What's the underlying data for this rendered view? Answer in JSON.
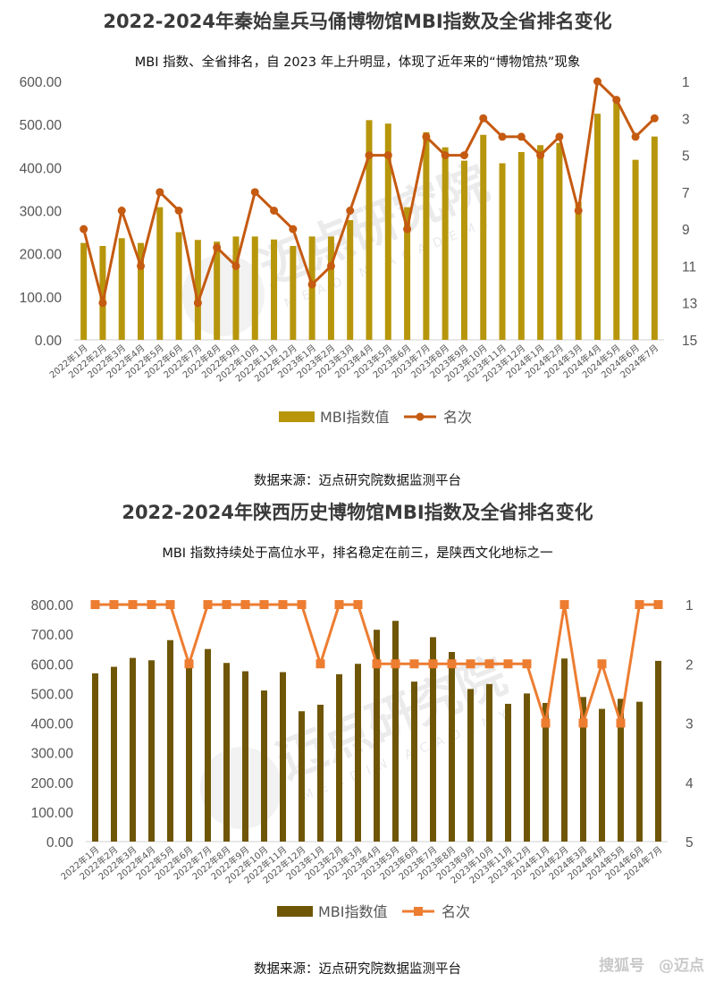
{
  "charts": [
    {
      "title": "2022-2024年秦始皇兵马俑博物馆MBI指数及全省排名变化",
      "subtitle": "MBI 指数、全省排名，自 2023 年上升明显，体现了近年来的“博物馆热”现象",
      "source": "数据来源：迈点研究院数据监测平台",
      "watermark": "迈点研究院",
      "watermark_sub": "MEADIN ACADEMY"
    },
    {
      "title": "2022-2024年陕西历史博物馆MBI指数及全省排名变化",
      "subtitle": "MBI 指数持续处于高位水平，排名稳定在前三，是陕西文化地标之一",
      "source": "数据来源：迈点研究院数据监测平台",
      "watermark": "迈点研究院",
      "watermark_sub": "MEADIN ACADEMY"
    }
  ],
  "brand": {
    "left": "搜狐号",
    "right": "@迈点"
  },
  "chart_data": [
    {
      "type": "bar+line",
      "title": "2022-2024年秦始皇兵马俑博物馆MBI指数及全省排名变化",
      "categories": [
        "2022年1月",
        "2022年2月",
        "2022年3月",
        "2022年4月",
        "2022年5月",
        "2022年6月",
        "2022年7月",
        "2022年8月",
        "2022年9月",
        "2022年10月",
        "2022年11月",
        "2022年12月",
        "2023年1月",
        "2023年2月",
        "2023年3月",
        "2023年4月",
        "2023年5月",
        "2023年6月",
        "2023年7月",
        "2023年8月",
        "2023年9月",
        "2023年10月",
        "2023年11月",
        "2023年12月",
        "2024年1月",
        "2024年2月",
        "2024年3月",
        "2024年4月",
        "2024年5月",
        "2024年6月",
        "2024年7月"
      ],
      "series": [
        {
          "name": "MBI指数值",
          "kind": "bar",
          "axis": "left",
          "color": "#b7960c",
          "values": [
            225,
            218,
            236,
            225,
            308,
            250,
            232,
            228,
            240,
            240,
            233,
            218,
            240,
            240,
            278,
            510,
            502,
            308,
            482,
            447,
            416,
            476,
            410,
            436,
            452,
            457,
            320,
            525,
            550,
            418,
            472
          ]
        },
        {
          "name": "名次",
          "kind": "line",
          "axis": "right",
          "color": "#c55a11",
          "values": [
            9,
            13,
            8,
            11,
            7,
            8,
            13,
            10,
            11,
            7,
            8,
            9,
            12,
            11,
            8,
            5,
            5,
            9,
            4,
            5,
            5,
            3,
            4,
            4,
            5,
            4,
            8,
            1,
            2,
            4,
            3
          ]
        }
      ],
      "y_left": {
        "min": 0,
        "max": 600,
        "step": 100,
        "ticks": [
          "0.00",
          "100.00",
          "200.00",
          "300.00",
          "400.00",
          "500.00",
          "600.00"
        ]
      },
      "y_right": {
        "min": 1,
        "max": 15,
        "reversed": true,
        "ticks": [
          "1",
          "3",
          "5",
          "7",
          "9",
          "11",
          "13",
          "15"
        ]
      },
      "legend": [
        "MBI指数值",
        "名次"
      ]
    },
    {
      "type": "bar+line",
      "title": "2022-2024年陕西历史博物馆MBI指数及全省排名变化",
      "categories": [
        "2022年1月",
        "2022年2月",
        "2022年3月",
        "2022年4月",
        "2022年5月",
        "2022年6月",
        "2022年7月",
        "2022年8月",
        "2022年9月",
        "2022年10月",
        "2022年11月",
        "2022年12月",
        "2023年1月",
        "2023年2月",
        "2023年3月",
        "2023年4月",
        "2023年5月",
        "2023年6月",
        "2023年7月",
        "2023年8月",
        "2023年9月",
        "2023年10月",
        "2023年11月",
        "2023年12月",
        "2024年1月",
        "2024年2月",
        "2024年3月",
        "2024年4月",
        "2024年5月",
        "2024年6月",
        "2024年7月"
      ],
      "series": [
        {
          "name": "MBI指数值",
          "kind": "bar",
          "axis": "left",
          "color": "#6f5607",
          "values": [
            568,
            590,
            620,
            612,
            680,
            600,
            650,
            603,
            575,
            510,
            572,
            440,
            462,
            565,
            600,
            715,
            745,
            540,
            690,
            640,
            515,
            532,
            465,
            500,
            468,
            618,
            488,
            448,
            482,
            472,
            610
          ]
        },
        {
          "name": "名次",
          "kind": "line",
          "axis": "right",
          "color": "#ed7d31",
          "values": [
            1,
            1,
            1,
            1,
            1,
            2,
            1,
            1,
            1,
            1,
            1,
            1,
            2,
            1,
            1,
            2,
            2,
            2,
            2,
            2,
            2,
            2,
            2,
            2,
            3,
            1,
            3,
            2,
            3,
            1,
            1
          ]
        }
      ],
      "y_left": {
        "min": 0,
        "max": 800,
        "step": 100,
        "ticks": [
          "0.00",
          "100.00",
          "200.00",
          "300.00",
          "400.00",
          "500.00",
          "600.00",
          "700.00",
          "800.00"
        ]
      },
      "y_right": {
        "min": 1,
        "max": 5,
        "reversed": true,
        "ticks": [
          "1",
          "2",
          "3",
          "4",
          "5"
        ]
      },
      "legend": [
        "MBI指数值",
        "名次"
      ]
    }
  ]
}
